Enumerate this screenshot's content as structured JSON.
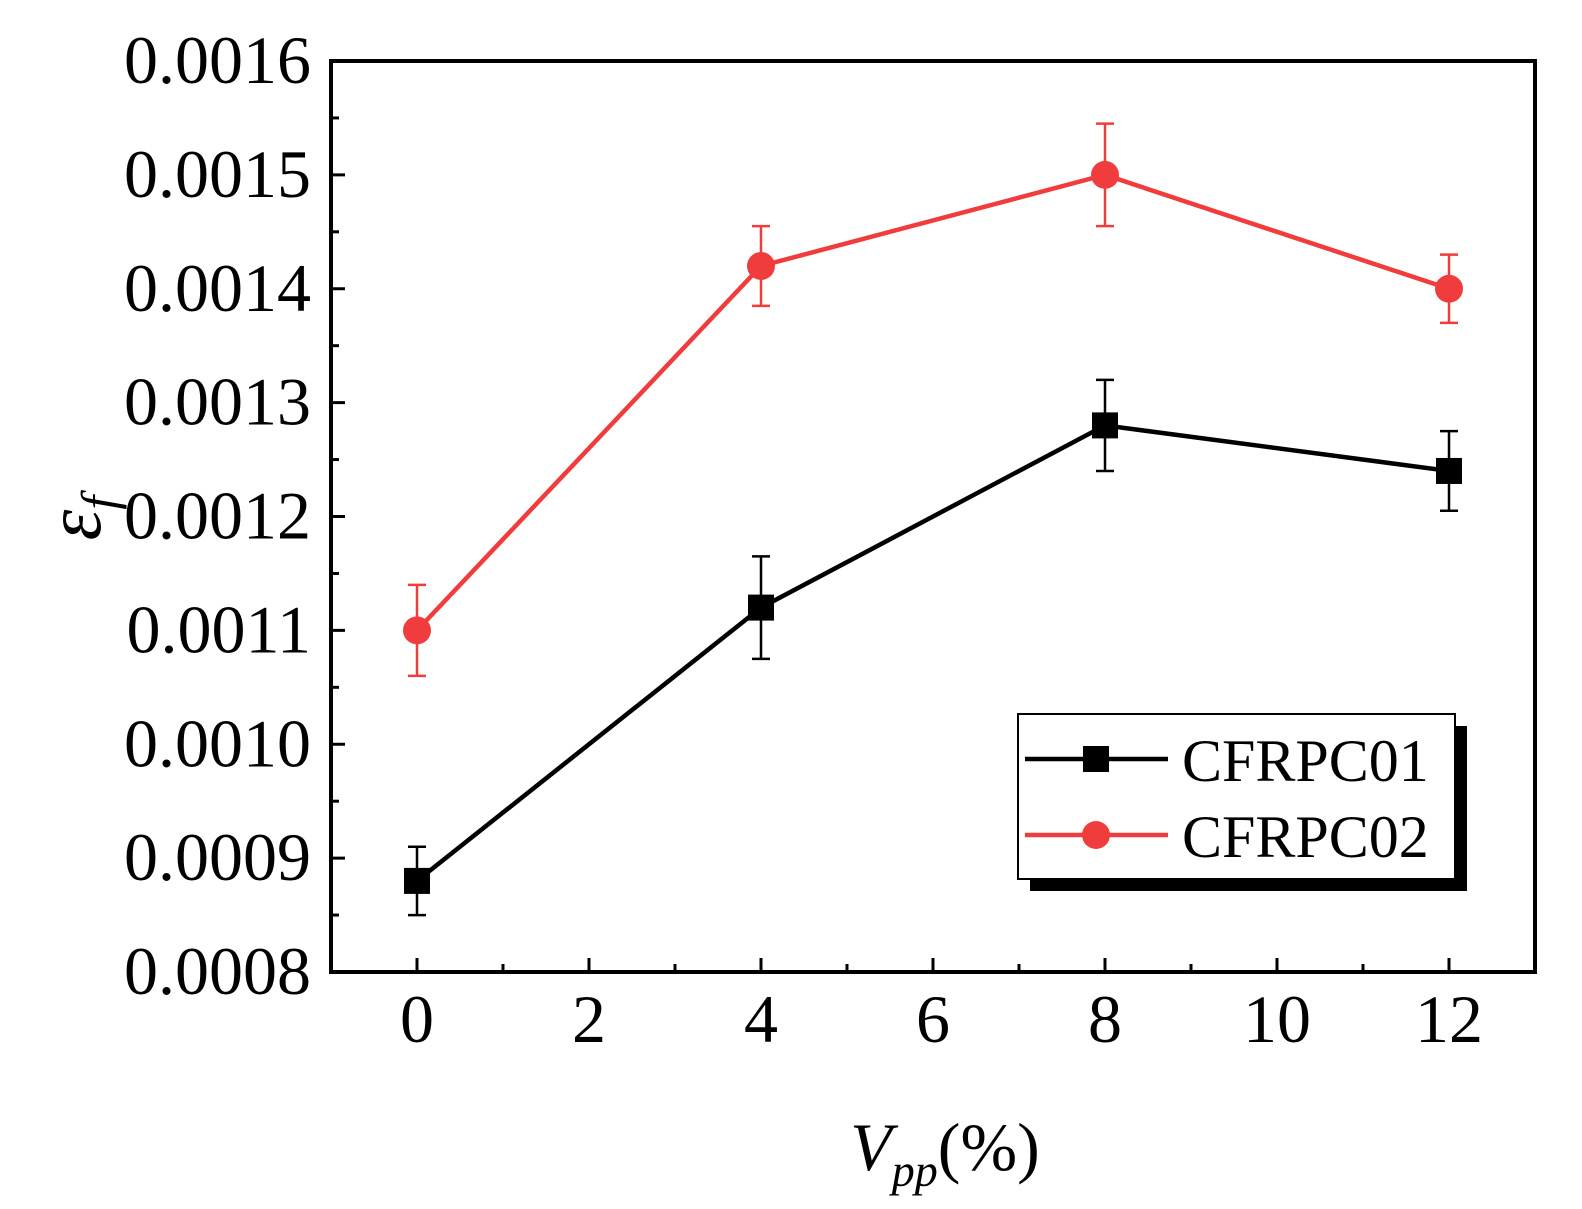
{
  "chart_data": {
    "type": "line",
    "title": "",
    "xlabel": {
      "main": "V",
      "sub": "pp",
      "suffix": "(%)"
    },
    "ylabel": {
      "symbol": "ε",
      "sub": "f"
    },
    "xlim": [
      -1,
      13
    ],
    "ylim": [
      0.0008,
      0.0016
    ],
    "x_ticks": [
      0,
      2,
      4,
      6,
      8,
      10,
      12
    ],
    "x_tick_labels": [
      "0",
      "2",
      "4",
      "6",
      "8",
      "10",
      "12"
    ],
    "y_ticks": [
      0.0008,
      0.0009,
      0.001,
      0.0011,
      0.0012,
      0.0013,
      0.0014,
      0.0015,
      0.0016
    ],
    "y_tick_labels": [
      "0.0008",
      "0.0009",
      "0.0010",
      "0.0011",
      "0.0012",
      "0.0013",
      "0.0014",
      "0.0015",
      "0.0016"
    ],
    "x": [
      0,
      4,
      8,
      12
    ],
    "series": [
      {
        "name": "CFRPC01",
        "color": "#000000",
        "marker": "square",
        "values": [
          0.00088,
          0.00112,
          0.00128,
          0.00124
        ],
        "error_upper": [
          0.00091,
          0.001165,
          0.00132,
          0.001275
        ],
        "error_lower": [
          0.00085,
          0.001075,
          0.00124,
          0.001205
        ]
      },
      {
        "name": "CFRPC02",
        "color": "#f03c3c",
        "marker": "circle",
        "values": [
          0.0011,
          0.00142,
          0.0015,
          0.0014
        ],
        "error_upper": [
          0.00114,
          0.001455,
          0.001545,
          0.00143
        ],
        "error_lower": [
          0.00106,
          0.001385,
          0.001455,
          0.00137
        ]
      }
    ],
    "legend_position": "bottom-right",
    "grid": false
  }
}
